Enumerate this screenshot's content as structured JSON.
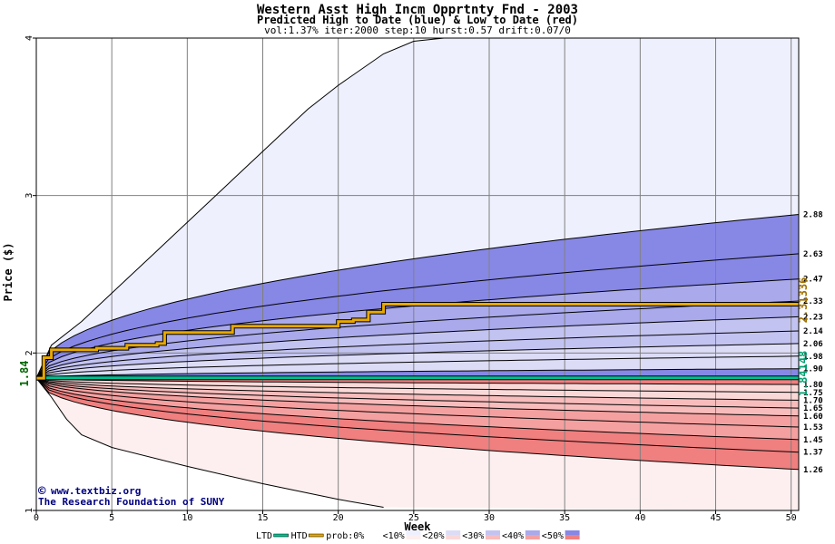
{
  "colors": {
    "blue_fill_10": "#eef0fd",
    "blue_fill_20": "#dcdcf7",
    "blue_fill_30": "#c3c3f2",
    "blue_fill_40": "#a9a9ec",
    "blue_fill_50": "#8787e6",
    "red_fill_10": "#fdefef",
    "red_fill_20": "#fbd8d8",
    "red_fill_30": "#f8bcbc",
    "red_fill_40": "#f5a0a0",
    "red_fill_50": "#f07f7f",
    "htd_line": "#e8a800",
    "ltd_line": "#00c090",
    "grid": "#808080",
    "title": "#000000",
    "watermark": "#000080",
    "start_label": "#006600",
    "htd_label": "#a07000",
    "ltd_label": "#00a070"
  },
  "chart_data": {
    "type": "area",
    "title": "Western Asst High Incm Opprtnty Fnd - 2003",
    "subtitle": "Predicted High to Date (blue) &  Low to Date (red)",
    "params": "vol:1.37% iter:2000 step:10 hurst:0.57 drift:0.07/0",
    "xlabel": "Week",
    "ylabel": "Price ($)",
    "xlim": [
      0,
      50.5
    ],
    "ylim": [
      1,
      4
    ],
    "xticks": [
      0,
      5,
      10,
      15,
      20,
      25,
      30,
      35,
      40,
      45,
      50
    ],
    "yticks": [
      1,
      2,
      3,
      4
    ],
    "grid": true,
    "start_price": 1.84,
    "start_label": "1.84",
    "htd_final_label": "2.31336",
    "ltd_final_label": "1.84148",
    "high_quantiles": [
      {
        "label": "1.90",
        "end": 1.9
      },
      {
        "label": "1.98",
        "end": 1.98
      },
      {
        "label": "2.06",
        "end": 2.06
      },
      {
        "label": "2.14",
        "end": 2.14
      },
      {
        "label": "2.23",
        "end": 2.23
      },
      {
        "label": "2.33",
        "end": 2.33
      },
      {
        "label": "2.47",
        "end": 2.47
      },
      {
        "label": "2.63",
        "end": 2.63
      },
      {
        "label": "2.88",
        "end": 2.88
      }
    ],
    "high_outer_envelope": {
      "x": [
        0,
        1,
        3,
        5,
        8,
        10,
        13,
        15,
        18,
        20,
        23,
        25,
        27
      ],
      "y": [
        1.84,
        2.05,
        2.2,
        2.38,
        2.65,
        2.83,
        3.1,
        3.28,
        3.55,
        3.7,
        3.9,
        3.98,
        4.0
      ]
    },
    "low_quantiles": [
      {
        "label": "1.80",
        "end": 1.8
      },
      {
        "label": "1.75",
        "end": 1.75
      },
      {
        "label": "1.70",
        "end": 1.7
      },
      {
        "label": "1.65",
        "end": 1.65
      },
      {
        "label": "1.60",
        "end": 1.6
      },
      {
        "label": "1.53",
        "end": 1.53
      },
      {
        "label": "1.45",
        "end": 1.45
      },
      {
        "label": "1.37",
        "end": 1.37
      },
      {
        "label": "1.26",
        "end": 1.26
      }
    ],
    "low_outer_envelope": {
      "x": [
        0,
        1,
        2,
        3,
        5,
        10,
        15,
        20,
        23
      ],
      "y": [
        1.84,
        1.72,
        1.58,
        1.48,
        1.4,
        1.28,
        1.17,
        1.07,
        1.02
      ]
    },
    "htd_series": {
      "name": "HTD",
      "x": [
        0,
        0.5,
        1,
        2,
        3,
        4,
        5,
        6,
        7,
        8,
        8.5,
        12,
        13,
        20,
        21,
        22,
        23,
        50.5
      ],
      "y": [
        1.84,
        1.97,
        2.02,
        2.02,
        2.02,
        2.03,
        2.03,
        2.05,
        2.05,
        2.06,
        2.13,
        2.13,
        2.17,
        2.2,
        2.21,
        2.26,
        2.31,
        2.31
      ]
    },
    "ltd_series": {
      "name": "LTD",
      "x": [
        0,
        0.5,
        50.5
      ],
      "y": [
        1.84,
        1.842,
        1.842
      ]
    },
    "legend": {
      "placement": "bottom",
      "items": [
        {
          "label": "LTD",
          "kind": "line",
          "color": "#00c090"
        },
        {
          "label": "HTD",
          "kind": "line",
          "color": "#e8a800"
        },
        {
          "label": "prob:0%",
          "kind": "swatch",
          "top": "#ffffff",
          "bottom": "#ffffff"
        },
        {
          "label": "<10%",
          "kind": "swatch",
          "top": "#eef0fd",
          "bottom": "#fdefef"
        },
        {
          "label": "<20%",
          "kind": "swatch",
          "top": "#dcdcf7",
          "bottom": "#fbd8d8"
        },
        {
          "label": "<30%",
          "kind": "swatch",
          "top": "#c3c3f2",
          "bottom": "#f8bcbc"
        },
        {
          "label": "<40%",
          "kind": "swatch",
          "top": "#a9a9ec",
          "bottom": "#f5a0a0"
        },
        {
          "label": "<50%",
          "kind": "swatch",
          "top": "#8787e6",
          "bottom": "#f07f7f"
        }
      ]
    },
    "watermark_line1": "www.textbiz.org",
    "watermark_line2": "The Research Foundation of SUNY",
    "copyright_mark": "©"
  }
}
